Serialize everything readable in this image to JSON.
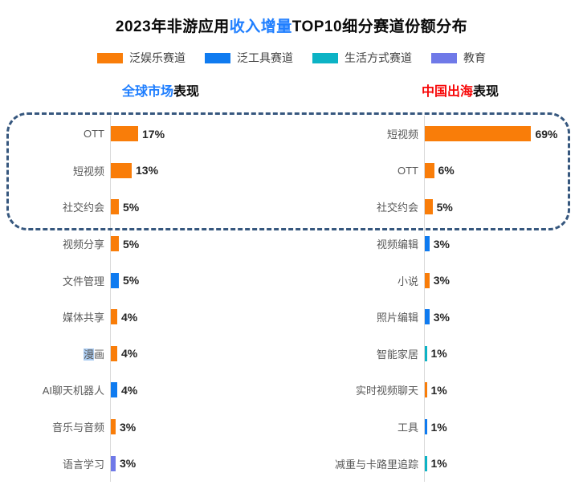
{
  "title": {
    "prefix": "2023年非游应用",
    "highlight": "收入增量",
    "suffix": "TOP10细分赛道份额分布",
    "highlight_color": "#1e7eff"
  },
  "track_colors": {
    "entertainment": "#f97d09",
    "tools": "#0f7bf0",
    "lifestyle": "#0cb3c5",
    "education": "#6f79e8"
  },
  "legend": [
    {
      "key": "entertainment",
      "label": "泛娱乐赛道"
    },
    {
      "key": "tools",
      "label": "泛工具赛道"
    },
    {
      "key": "lifestyle",
      "label": "生活方式赛道"
    },
    {
      "key": "education",
      "label": "教育"
    }
  ],
  "annotation": {
    "type": "dashed-rounded-box",
    "covers": "top 3 categories of both charts",
    "color": "#36577e"
  },
  "chart_data": [
    {
      "type": "bar",
      "orientation": "horizontal",
      "section_title": {
        "highlight": "全球市场",
        "rest": "表现",
        "highlight_color": "#1e7eff"
      },
      "unit": "%",
      "categories": [
        "OTT",
        "短视频",
        "社交约会",
        "视频分享",
        "文件管理",
        "媒体共享",
        "漫画",
        "AI聊天机器人",
        "音乐与音频",
        "语言学习"
      ],
      "values": [
        17,
        13,
        5,
        5,
        5,
        4,
        4,
        4,
        3,
        3
      ],
      "value_labels": [
        "17%",
        "13%",
        "5%",
        "5%",
        "5%",
        "4%",
        "4%",
        "4%",
        "3%",
        "3%"
      ],
      "tracks": [
        "entertainment",
        "entertainment",
        "entertainment",
        "entertainment",
        "tools",
        "entertainment",
        "entertainment",
        "tools",
        "entertainment",
        "education"
      ],
      "selection_highlight": {
        "category_index": 6,
        "highlighted_text": "漫"
      },
      "xlim": [
        0,
        100
      ],
      "grid": false,
      "legend_position": "top"
    },
    {
      "type": "bar",
      "orientation": "horizontal",
      "section_title": {
        "highlight": "中国出海",
        "rest": "表现",
        "highlight_color": "#f70708"
      },
      "unit": "%",
      "categories": [
        "短视频",
        "OTT",
        "社交约会",
        "视频编辑",
        "小说",
        "照片编辑",
        "智能家居",
        "实时视频聊天",
        "工具",
        "减重与卡路里追踪"
      ],
      "values": [
        69,
        6,
        5,
        3,
        3,
        3,
        1,
        1,
        1,
        1
      ],
      "value_labels": [
        "69%",
        "6%",
        "5%",
        "3%",
        "3%",
        "3%",
        "1%",
        "1%",
        "1%",
        "1%"
      ],
      "tracks": [
        "entertainment",
        "entertainment",
        "entertainment",
        "tools",
        "entertainment",
        "tools",
        "lifestyle",
        "entertainment",
        "tools",
        "lifestyle"
      ],
      "xlim": [
        0,
        100
      ],
      "grid": false,
      "legend_position": "top"
    }
  ]
}
